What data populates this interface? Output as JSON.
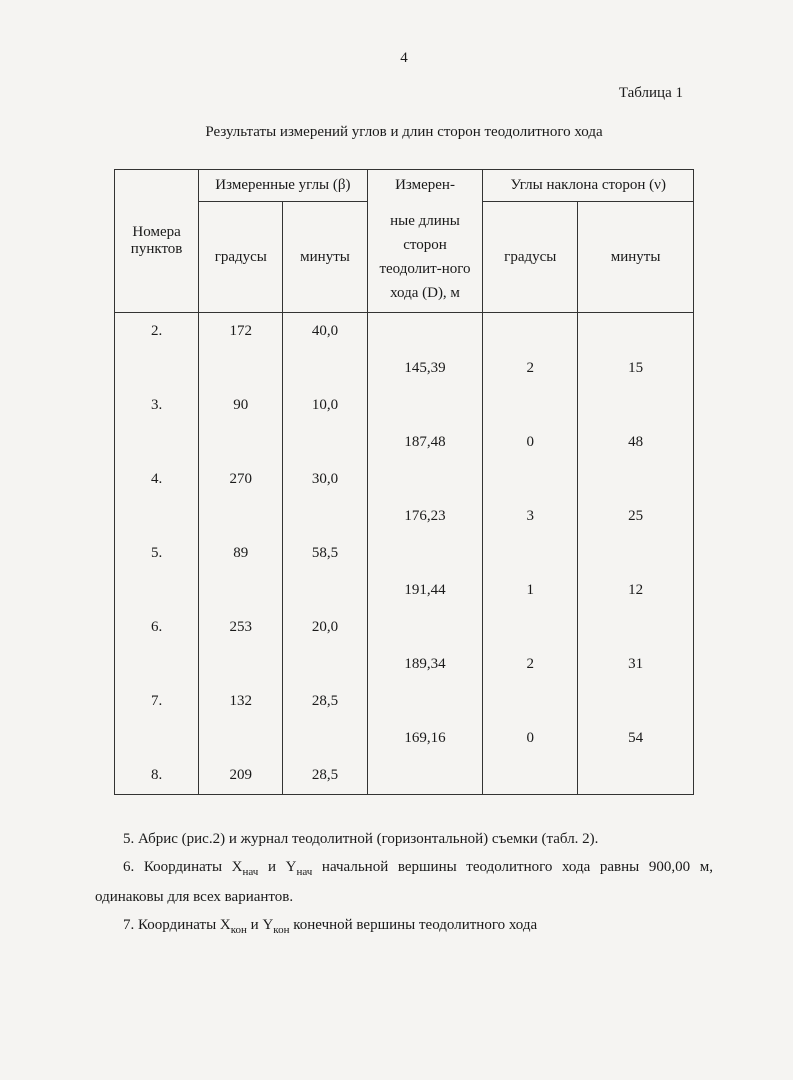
{
  "page_number": "4",
  "table_label": "Таблица 1",
  "table_title": "Результаты измерений углов и длин сторон теодолитного хода",
  "table": {
    "headers": {
      "col1": "Номера пунктов",
      "grp1": "Измеренные углы (β)",
      "grp1_sub1": "градусы",
      "grp1_sub2": "минуты",
      "col_mid_top": "Измерен-",
      "col_mid_rest": "ные длины сторон теодолит-ного хода (D), м",
      "grp2": "Углы наклона сторон (ν)",
      "grp2_sub1": "градусы",
      "grp2_sub2": "минуты"
    },
    "rows": [
      {
        "point": "2.",
        "deg": "172",
        "min": "40,0",
        "d": "",
        "ndeg": "",
        "nmin": ""
      },
      {
        "point": "",
        "deg": "",
        "min": "",
        "d": "145,39",
        "ndeg": "2",
        "nmin": "15"
      },
      {
        "point": "3.",
        "deg": "90",
        "min": "10,0",
        "d": "",
        "ndeg": "",
        "nmin": ""
      },
      {
        "point": "",
        "deg": "",
        "min": "",
        "d": "187,48",
        "ndeg": "0",
        "nmin": "48"
      },
      {
        "point": "4.",
        "deg": "270",
        "min": "30,0",
        "d": "",
        "ndeg": "",
        "nmin": ""
      },
      {
        "point": "",
        "deg": "",
        "min": "",
        "d": "176,23",
        "ndeg": "3",
        "nmin": "25"
      },
      {
        "point": "5.",
        "deg": "89",
        "min": "58,5",
        "d": "",
        "ndeg": "",
        "nmin": ""
      },
      {
        "point": "",
        "deg": "",
        "min": "",
        "d": "191,44",
        "ndeg": "1",
        "nmin": "12"
      },
      {
        "point": "6.",
        "deg": "253",
        "min": "20,0",
        "d": "",
        "ndeg": "",
        "nmin": ""
      },
      {
        "point": "",
        "deg": "",
        "min": "",
        "d": "189,34",
        "ndeg": "2",
        "nmin": "31"
      },
      {
        "point": "7.",
        "deg": "132",
        "min": "28,5",
        "d": "",
        "ndeg": "",
        "nmin": ""
      },
      {
        "point": "",
        "deg": "",
        "min": "",
        "d": "169,16",
        "ndeg": "0",
        "nmin": "54"
      },
      {
        "point": "8.",
        "deg": "209",
        "min": "28,5",
        "d": "",
        "ndeg": "",
        "nmin": ""
      }
    ],
    "col_widths": [
      "80px",
      "80px",
      "80px",
      "110px",
      "90px",
      "110px"
    ]
  },
  "para5_pre": "5. Абрис (рис.2) и журнал теодолитной (горизонтальной) съемки (табл. 2).",
  "para6_a": "6. Координаты X",
  "para6_sub1": "нач",
  "para6_b": " и Y",
  "para6_sub2": "нач",
  "para6_c": " начальной вершины теодолитного хода равны 900,00 м, одинаковы для всех вариантов.",
  "para7_a": "7. Координаты X",
  "para7_sub1": "кон",
  "para7_b": " и Y",
  "para7_sub2": "кон",
  "para7_c": " конечной вершины теодолитного хода",
  "colors": {
    "text": "#1a1a1a",
    "bg": "#f5f4f2",
    "border": "#333"
  }
}
